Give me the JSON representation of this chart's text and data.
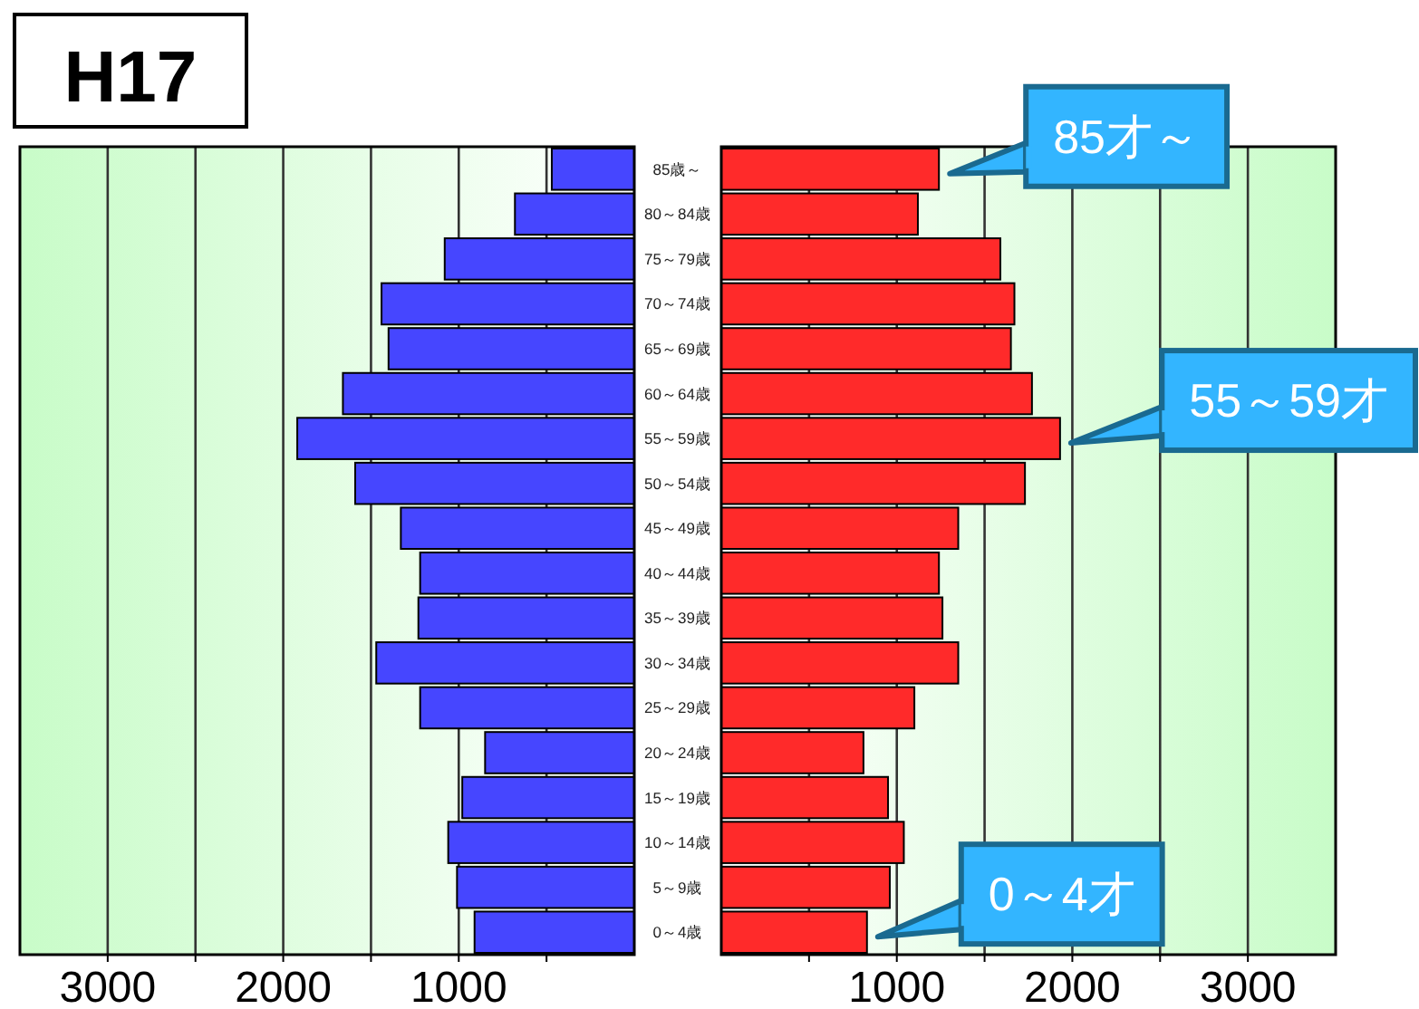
{
  "chart_data": [
    {
      "type": "bar",
      "orientation": "horizontal",
      "title": "H17",
      "categories": [
        "85歳～",
        "80～84歳",
        "75～79歳",
        "70～74歳",
        "65～69歳",
        "60～64歳",
        "55～59歳",
        "50～54歳",
        "45～49歳",
        "40～44歳",
        "35～39歳",
        "30～34歳",
        "25～29歳",
        "20～24歳",
        "15～19歳",
        "10～14歳",
        "5～9歳",
        "0～4歳"
      ],
      "series": [
        {
          "color": "#4646ff",
          "values": [
            470,
            680,
            1080,
            1440,
            1400,
            1660,
            1920,
            1590,
            1330,
            1220,
            1230,
            1470,
            1220,
            850,
            980,
            1060,
            1010,
            910
          ]
        }
      ],
      "xlim": [
        3500,
        0
      ],
      "xticks": [
        3000,
        {
          "value": 2500,
          "label": null
        },
        2000,
        {
          "value": 1500,
          "label": null
        },
        1000,
        {
          "value": 500,
          "label": null
        }
      ],
      "grid": "x"
    },
    {
      "type": "bar",
      "orientation": "horizontal",
      "categories": [
        "85歳～",
        "80～84歳",
        "75～79歳",
        "70～74歳",
        "65～69歳",
        "60～64歳",
        "55～59歳",
        "50～54歳",
        "45～49歳",
        "40～44歳",
        "35～39歳",
        "30～34歳",
        "25～29歳",
        "20～24歳",
        "15～19歳",
        "10～14歳",
        "5～9歳",
        "0～4歳"
      ],
      "series": [
        {
          "color": "#ff2a2a",
          "values": [
            1240,
            1120,
            1590,
            1670,
            1650,
            1770,
            1930,
            1730,
            1350,
            1240,
            1260,
            1350,
            1100,
            810,
            950,
            1040,
            960,
            830
          ]
        }
      ],
      "xlim": [
        0,
        3500
      ],
      "xticks": [
        {
          "value": 500,
          "label": null
        },
        1000,
        {
          "value": 1500,
          "label": null
        },
        2000,
        {
          "value": 2500,
          "label": null
        },
        3000
      ],
      "grid": "x",
      "tick_labels": "x",
      "annotations": [
        {
          "text": "85才～",
          "x": 1240,
          "y": "85歳～"
        },
        {
          "text": "55～59才",
          "x": 1930,
          "y": "55～59歳"
        },
        {
          "text": "0～4才",
          "x": 830,
          "y": "0～4歳"
        }
      ]
    }
  ]
}
